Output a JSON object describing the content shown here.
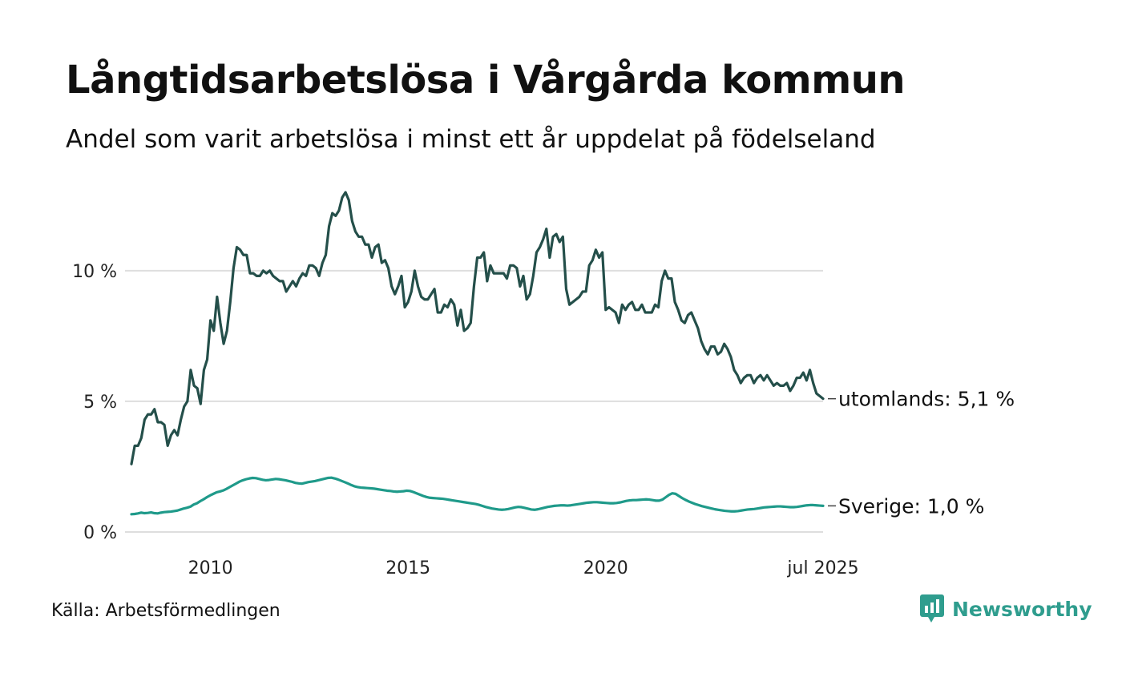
{
  "title": "Långtidsarbetslösa i Vårgårda kommun",
  "subtitle": "Andel som varit arbetslösa i minst ett år uppdelat på födelseland",
  "source": "Källa: Arbetsförmedlingen",
  "brand": {
    "name": "Newsworthy",
    "icon": "newsworthy-logo-icon",
    "color": "#2f9d8e"
  },
  "chart_data": {
    "type": "line",
    "title": "Långtidsarbetslösa i Vårgårda kommun",
    "subtitle": "Andel som varit arbetslösa i minst ett år uppdelat på födelseland",
    "x_start": "2008-01",
    "x_end": "2025-07",
    "xlim": [
      "2008-01",
      "2025-07"
    ],
    "ylim": [
      0,
      13
    ],
    "x_ticks": [
      {
        "date": "2010-01",
        "label": "2010"
      },
      {
        "date": "2015-01",
        "label": "2015"
      },
      {
        "date": "2020-01",
        "label": "2020"
      },
      {
        "date": "2025-07",
        "label": "jul 2025"
      }
    ],
    "y_ticks": [
      {
        "value": 0,
        "label": "0 %"
      },
      {
        "value": 5,
        "label": "5 %"
      },
      {
        "value": 10,
        "label": "10 %"
      }
    ],
    "grid": true,
    "legend": "end-of-line labels",
    "series": [
      {
        "name": "utomlands",
        "end_label": "utomlands: 5,1 %",
        "color": "#244f4a",
        "values": [
          2.6,
          3.3,
          3.3,
          3.6,
          4.3,
          4.5,
          4.5,
          4.7,
          4.2,
          4.2,
          4.1,
          3.3,
          3.7,
          3.9,
          3.7,
          4.3,
          4.8,
          5.0,
          6.2,
          5.6,
          5.5,
          4.9,
          6.2,
          6.6,
          8.1,
          7.7,
          9.0,
          8.0,
          7.2,
          7.7,
          8.8,
          10.1,
          10.9,
          10.8,
          10.6,
          10.6,
          9.9,
          9.9,
          9.8,
          9.8,
          10.0,
          9.9,
          10.0,
          9.8,
          9.7,
          9.6,
          9.6,
          9.2,
          9.4,
          9.6,
          9.4,
          9.7,
          9.9,
          9.8,
          10.2,
          10.2,
          10.1,
          9.8,
          10.3,
          10.6,
          11.7,
          12.2,
          12.1,
          12.3,
          12.8,
          13.0,
          12.7,
          11.9,
          11.5,
          11.3,
          11.3,
          11.0,
          11.0,
          10.5,
          10.9,
          11.0,
          10.3,
          10.4,
          10.1,
          9.4,
          9.1,
          9.4,
          9.8,
          8.6,
          8.8,
          9.2,
          10.0,
          9.4,
          9.0,
          8.9,
          8.9,
          9.1,
          9.3,
          8.4,
          8.4,
          8.7,
          8.6,
          8.9,
          8.7,
          7.9,
          8.5,
          7.7,
          7.8,
          8.0,
          9.4,
          10.5,
          10.5,
          10.7,
          9.6,
          10.2,
          9.9,
          9.9,
          9.9,
          9.9,
          9.7,
          10.2,
          10.2,
          10.1,
          9.4,
          9.8,
          8.9,
          9.1,
          9.8,
          10.7,
          10.9,
          11.2,
          11.6,
          10.5,
          11.3,
          11.4,
          11.1,
          11.3,
          9.3,
          8.7,
          8.8,
          8.9,
          9.0,
          9.2,
          9.2,
          10.2,
          10.4,
          10.8,
          10.5,
          10.7,
          8.5,
          8.6,
          8.5,
          8.4,
          8.0,
          8.7,
          8.5,
          8.7,
          8.8,
          8.5,
          8.5,
          8.7,
          8.4,
          8.4,
          8.4,
          8.7,
          8.6,
          9.6,
          10.0,
          9.7,
          9.7,
          8.8,
          8.5,
          8.1,
          8.0,
          8.3,
          8.4,
          8.1,
          7.8,
          7.3,
          7.0,
          6.8,
          7.1,
          7.1,
          6.8,
          6.9,
          7.2,
          7.0,
          6.7,
          6.2,
          6.0,
          5.7,
          5.9,
          6.0,
          6.0,
          5.7,
          5.9,
          6.0,
          5.8,
          6.0,
          5.8,
          5.6,
          5.7,
          5.6,
          5.6,
          5.7,
          5.4,
          5.6,
          5.9,
          5.9,
          6.1,
          5.8,
          6.2,
          5.7,
          5.3,
          5.2,
          5.1
        ]
      },
      {
        "name": "Sverige",
        "end_label": "Sverige: 1,0 %",
        "color": "#1f9a8a",
        "values": [
          0.68,
          0.69,
          0.71,
          0.74,
          0.72,
          0.73,
          0.75,
          0.72,
          0.71,
          0.74,
          0.76,
          0.77,
          0.78,
          0.8,
          0.82,
          0.86,
          0.9,
          0.93,
          0.97,
          1.05,
          1.1,
          1.18,
          1.25,
          1.33,
          1.4,
          1.46,
          1.52,
          1.55,
          1.59,
          1.65,
          1.72,
          1.79,
          1.86,
          1.93,
          1.98,
          2.02,
          2.05,
          2.07,
          2.06,
          2.03,
          2.0,
          1.98,
          1.99,
          2.01,
          2.03,
          2.02,
          2.0,
          1.98,
          1.95,
          1.92,
          1.88,
          1.86,
          1.85,
          1.88,
          1.91,
          1.93,
          1.95,
          1.98,
          2.01,
          2.04,
          2.07,
          2.08,
          2.05,
          2.01,
          1.96,
          1.91,
          1.86,
          1.8,
          1.75,
          1.72,
          1.7,
          1.69,
          1.68,
          1.67,
          1.66,
          1.64,
          1.62,
          1.6,
          1.58,
          1.57,
          1.55,
          1.54,
          1.55,
          1.56,
          1.58,
          1.57,
          1.53,
          1.48,
          1.43,
          1.38,
          1.34,
          1.31,
          1.3,
          1.29,
          1.28,
          1.27,
          1.25,
          1.23,
          1.21,
          1.19,
          1.17,
          1.15,
          1.13,
          1.11,
          1.09,
          1.07,
          1.04,
          1.0,
          0.96,
          0.93,
          0.9,
          0.88,
          0.86,
          0.85,
          0.86,
          0.88,
          0.91,
          0.94,
          0.96,
          0.95,
          0.92,
          0.89,
          0.86,
          0.85,
          0.87,
          0.9,
          0.93,
          0.96,
          0.98,
          1.0,
          1.01,
          1.02,
          1.02,
          1.01,
          1.02,
          1.04,
          1.06,
          1.08,
          1.1,
          1.12,
          1.13,
          1.14,
          1.14,
          1.13,
          1.12,
          1.11,
          1.1,
          1.1,
          1.11,
          1.13,
          1.16,
          1.19,
          1.21,
          1.22,
          1.22,
          1.23,
          1.24,
          1.25,
          1.24,
          1.22,
          1.2,
          1.2,
          1.24,
          1.33,
          1.42,
          1.48,
          1.46,
          1.38,
          1.3,
          1.23,
          1.17,
          1.12,
          1.07,
          1.03,
          0.99,
          0.96,
          0.93,
          0.9,
          0.87,
          0.85,
          0.83,
          0.81,
          0.8,
          0.79,
          0.79,
          0.8,
          0.82,
          0.84,
          0.86,
          0.87,
          0.88,
          0.9,
          0.92,
          0.94,
          0.95,
          0.96,
          0.97,
          0.98,
          0.98,
          0.97,
          0.96,
          0.95,
          0.95,
          0.96,
          0.98,
          1.0,
          1.02,
          1.03,
          1.03,
          1.02,
          1.01,
          1.0
        ]
      }
    ]
  }
}
